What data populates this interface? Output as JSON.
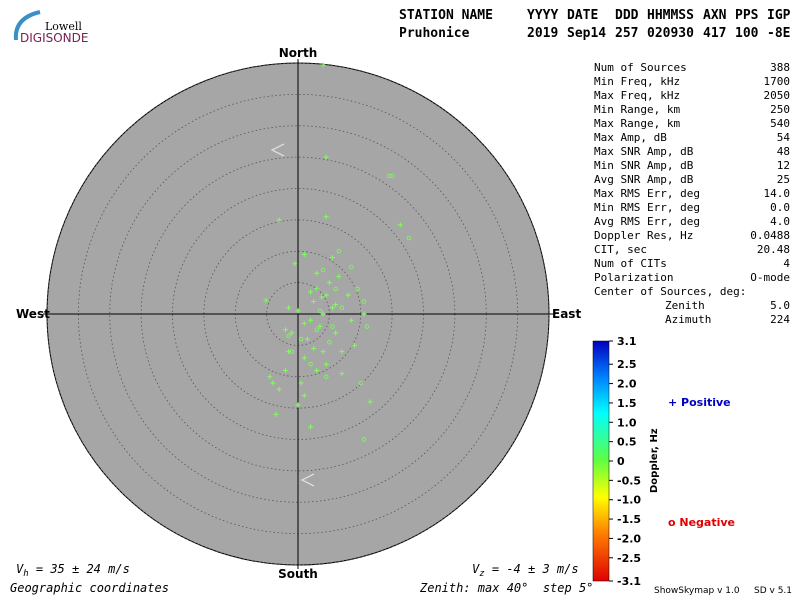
{
  "logo": {
    "top": "Lowell",
    "bottom": "DIGISONDE"
  },
  "header": {
    "labels": [
      "STATION NAME",
      "YYYY",
      "DATE",
      "DDD",
      "HHMMSS",
      "AXN",
      "PPS",
      "IGP"
    ],
    "values": [
      "Pruhonice",
      "2019",
      "Sep14",
      "257",
      "020930",
      "417",
      "100",
      "-8E"
    ]
  },
  "stats": {
    "rows": [
      [
        "Num of Sources",
        "388"
      ],
      [
        "Min Freq, kHz",
        "1700"
      ],
      [
        "Max Freq, kHz",
        "2050"
      ],
      [
        "Min Range, km",
        "250"
      ],
      [
        "Max Range, km",
        "540"
      ],
      [
        "Max Amp, dB",
        "54"
      ],
      [
        "Max SNR Amp, dB",
        "48"
      ],
      [
        "Min SNR Amp, dB",
        "12"
      ],
      [
        "Avg SNR Amp, dB",
        "25"
      ],
      [
        "Max RMS Err, deg",
        "14.0"
      ],
      [
        "Min RMS Err, deg",
        "0.0"
      ],
      [
        "Avg RMS Err, deg",
        "4.0"
      ],
      [
        "Doppler Res, Hz",
        "0.0488"
      ],
      [
        "CIT, sec",
        "20.48"
      ],
      [
        "Num of CITs",
        "4"
      ],
      [
        "Polarization",
        "O-mode"
      ]
    ],
    "center_title": "Center of Sources, deg:",
    "center_rows": [
      [
        "Zenith",
        "5.0"
      ],
      [
        "Azimuth",
        "224"
      ]
    ]
  },
  "chart_data": {
    "type": "skymap",
    "directions": {
      "north": "North",
      "south": "South",
      "west": "West",
      "east": "East"
    },
    "rlim": [
      0,
      40
    ],
    "rticks": [
      5,
      10,
      15,
      20,
      25,
      30,
      35,
      40
    ],
    "marker_color": "#7dff5a",
    "series": [
      {
        "name": "Positive",
        "marker": "plus",
        "color": "#0000c0",
        "x": [
          4,
          4.5,
          -3,
          4.5,
          16.3,
          -5.1,
          -4.5,
          -3.5,
          -3,
          -2,
          -1.5,
          -1,
          0,
          0.5,
          1,
          1.5,
          2,
          2.5,
          3,
          3.5,
          4,
          4.5,
          5,
          5.5,
          6,
          6.5,
          7,
          8,
          9,
          10.5,
          11.5,
          2,
          1,
          3,
          4,
          -0.5,
          3,
          5.5,
          7,
          0,
          -2,
          1,
          2.5,
          -1.5,
          8.5,
          4.5,
          3.8,
          6,
          2,
          -4,
          1
        ],
        "y": [
          39.7,
          25,
          15,
          15.5,
          14.2,
          2.2,
          -10,
          -16,
          -12,
          -9,
          -6,
          -3,
          -14.5,
          -11,
          -7,
          -4,
          -1,
          2,
          4,
          -2,
          0,
          3,
          5,
          1,
          -3,
          6,
          -6,
          3,
          -5,
          0,
          -14,
          -18,
          -13,
          -9,
          -6,
          8,
          6.5,
          9,
          -9.5,
          0.5,
          -2.5,
          -1.5,
          -5.5,
          1,
          -1,
          -8,
          2.7,
          1.5,
          3.5,
          -11,
          9.5
        ]
      },
      {
        "name": "Negative",
        "marker": "circle",
        "color": "#e00000",
        "x": [
          15,
          17.7,
          14.5,
          5.5,
          8.5,
          6,
          3,
          9.5,
          10,
          4,
          2,
          -1,
          7,
          10.5,
          11,
          0.5,
          5,
          3.5,
          -1.5,
          4.5,
          6.5,
          10.5
        ],
        "y": [
          22,
          12.1,
          22,
          -2,
          7.5,
          4,
          -2.5,
          4,
          -11,
          7,
          -8,
          -6,
          1,
          2,
          -2,
          -4,
          -4.5,
          0.5,
          -3.5,
          -10,
          10,
          -20
        ]
      }
    ],
    "colorbar": {
      "label": "Doppler, Hz",
      "lim": [
        -3.1,
        3.1
      ],
      "ticks": [
        3.1,
        2.5,
        {
          "value": 2,
          "label": "2.0"
        },
        1.5,
        {
          "value": 1,
          "label": "1.0"
        },
        0.5,
        0,
        -0.5,
        {
          "value": -1,
          "label": "-1.0"
        },
        -1.5,
        {
          "value": -2,
          "label": "-2.0"
        },
        -2.5,
        -3.1
      ]
    }
  },
  "footer": {
    "vh": {
      "symbol": "V",
      "sub": "h",
      "text": " = 35 ± 24 m/s"
    },
    "vz": {
      "symbol": "V",
      "sub": "z",
      "text": " = -4 ± 3 m/s"
    },
    "coordinates": "Geographic coordinates",
    "zenith": "Zenith: max 40°  step 5°",
    "program": "ShowSkymap v 1.0",
    "version": "SD v 5.1"
  }
}
